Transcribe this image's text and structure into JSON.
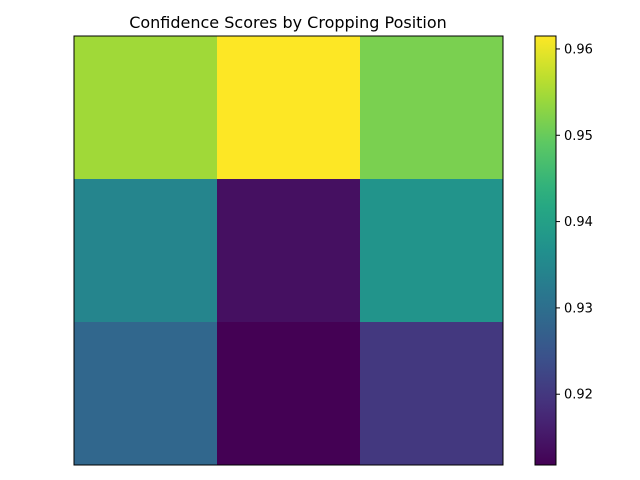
{
  "chart_data": {
    "type": "heatmap",
    "title": "Confidence Scores by Cropping Position",
    "xlabel": "",
    "ylabel": "",
    "rows": 3,
    "cols": 3,
    "values": [
      [
        0.9545,
        0.9615,
        0.9515
      ],
      [
        0.9345,
        0.914,
        0.9375
      ],
      [
        0.9285,
        0.9118,
        0.92
      ]
    ],
    "colormap": "viridis",
    "colorbar": {
      "min": 0.9118,
      "max": 0.9615,
      "ticks": [
        0.92,
        0.93,
        0.94,
        0.95,
        0.96
      ],
      "tick_labels": [
        "0.92",
        "0.93",
        "0.94",
        "0.95",
        "0.96"
      ]
    },
    "axes_ticks_visible": false
  }
}
